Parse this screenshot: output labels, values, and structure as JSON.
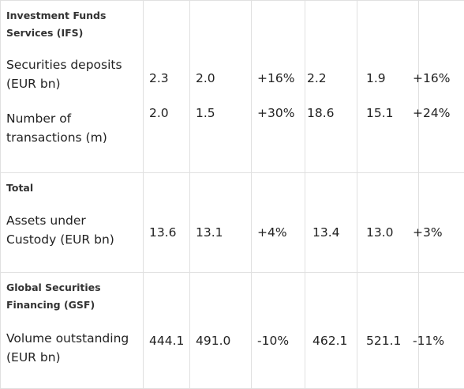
{
  "sections": [
    {
      "heading": "Investment Funds Services (IFS)",
      "rows": [
        {
          "label": "Securities deposits (EUR bn)",
          "values": [
            "2.3",
            "2.0",
            "+16%",
            "2.2",
            "1.9",
            "+16%"
          ]
        },
        {
          "label": "Number of transactions (m)",
          "values": [
            "2.0",
            "1.5",
            "+30%",
            "18.6",
            "15.1",
            "+24%"
          ]
        }
      ]
    },
    {
      "heading": "Total",
      "rows": [
        {
          "label": "Assets under Custody (EUR bn)",
          "values": [
            "13.6",
            "13.1",
            "+4%",
            "13.4",
            "13.0",
            "+3%"
          ]
        }
      ]
    },
    {
      "heading": "Global Securities Financing (GSF)",
      "rows": [
        {
          "label": "Volume outstanding (EUR bn)",
          "values": [
            "444.1",
            "491.0",
            "-10%",
            "462.1",
            "521.1",
            "-11%"
          ]
        }
      ]
    }
  ]
}
